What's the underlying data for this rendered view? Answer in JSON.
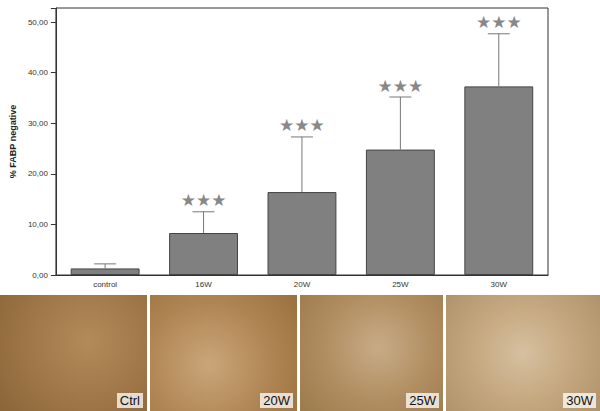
{
  "chart_data": {
    "type": "bar",
    "y_label": "% FABP negative",
    "categories": [
      "control",
      "16W",
      "20W",
      "25W",
      "30W"
    ],
    "values": [
      1.3,
      8.3,
      16.4,
      24.8,
      37.3
    ],
    "error": [
      0.9,
      4.2,
      10.9,
      10.4,
      10.4
    ],
    "color": "#808080",
    "ylim": [
      0,
      52.8
    ],
    "yticks": [
      {
        "value": 0,
        "label": "0,00"
      },
      {
        "value": 10,
        "label": "10,00"
      },
      {
        "value": 20,
        "label": "20,00"
      },
      {
        "value": 30,
        "label": "30,00"
      },
      {
        "value": 40,
        "label": "40,00"
      },
      {
        "value": 50,
        "label": "50,00"
      }
    ],
    "annotations": [
      null,
      "★★★",
      "★★★",
      "★★★",
      "★★★"
    ],
    "grid": false
  },
  "image_panels": [
    "Ctrl",
    "20W",
    "25W",
    "30W"
  ]
}
